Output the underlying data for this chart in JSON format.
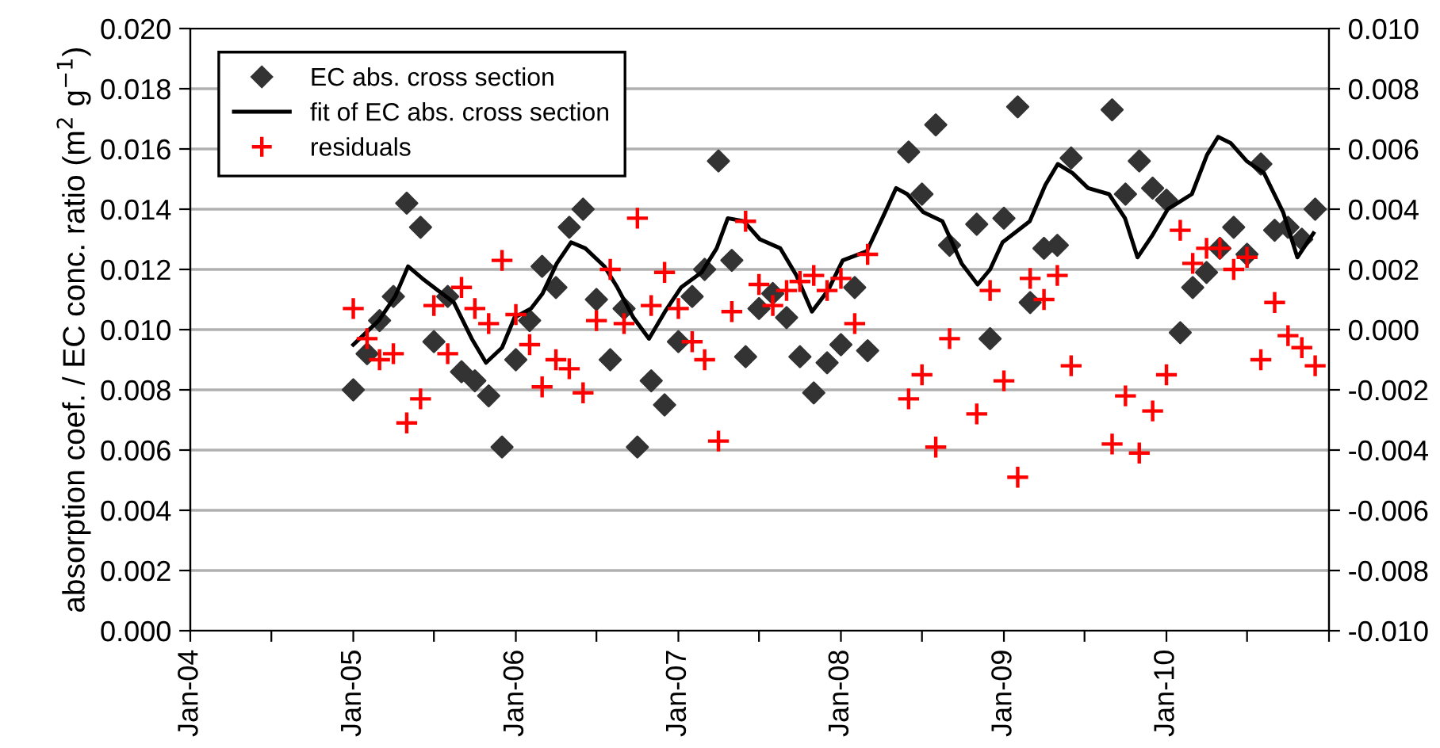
{
  "chart_data": {
    "type": "scatter",
    "ylabel": "absorption coef. / EC conc. ratio (m$^{2}$ g$^{−1}$)",
    "xlim": [
      "2004-01-01",
      "2011-01-01"
    ],
    "xticks": [
      {
        "value": "2004-01-01",
        "label": "Jan-04"
      },
      {
        "value": "2004-07-01",
        "label": null
      },
      {
        "value": "2005-01-01",
        "label": "Jan-05"
      },
      {
        "value": "2005-07-01",
        "label": null
      },
      {
        "value": "2006-01-01",
        "label": "Jan-06"
      },
      {
        "value": "2006-07-01",
        "label": null
      },
      {
        "value": "2007-01-01",
        "label": "Jan-07"
      },
      {
        "value": "2007-07-01",
        "label": null
      },
      {
        "value": "2008-01-01",
        "label": "Jan-08"
      },
      {
        "value": "2008-07-01",
        "label": null
      },
      {
        "value": "2009-01-01",
        "label": "Jan-09"
      },
      {
        "value": "2009-07-01",
        "label": null
      },
      {
        "value": "2010-01-01",
        "label": "Jan-10"
      },
      {
        "value": "2010-07-01",
        "label": null
      },
      {
        "value": "2011-01-01",
        "label": null
      }
    ],
    "ylim": [
      0,
      0.02
    ],
    "yticks": [
      {
        "value": 0,
        "label": "0.000"
      },
      {
        "value": 0.002,
        "label": "0.002"
      },
      {
        "value": 0.004,
        "label": "0.004"
      },
      {
        "value": 0.006,
        "label": "0.006"
      },
      {
        "value": 0.008,
        "label": "0.008"
      },
      {
        "value": 0.01,
        "label": "0.010"
      },
      {
        "value": 0.012,
        "label": "0.012"
      },
      {
        "value": 0.014,
        "label": "0.014"
      },
      {
        "value": 0.016,
        "label": "0.016"
      },
      {
        "value": 0.018,
        "label": "0.018"
      },
      {
        "value": 0.02,
        "label": "0.020"
      }
    ],
    "y2lim": [
      -0.01,
      0.01
    ],
    "y2ticks": [
      {
        "value": -0.01,
        "label": "-0.010"
      },
      {
        "value": -0.008,
        "label": "-0.008"
      },
      {
        "value": -0.006,
        "label": "-0.006"
      },
      {
        "value": -0.004,
        "label": "-0.004"
      },
      {
        "value": -0.002,
        "label": "-0.002"
      },
      {
        "value": 0,
        "label": "0.000"
      },
      {
        "value": 0.002,
        "label": "0.002"
      },
      {
        "value": 0.004,
        "label": "0.004"
      },
      {
        "value": 0.006,
        "label": "0.006"
      },
      {
        "value": 0.008,
        "label": "0.008"
      },
      {
        "value": 0.01,
        "label": "0.010"
      }
    ],
    "grid": "y",
    "legend": "top left",
    "series": [
      {
        "name": "EC abs. cross section",
        "marker": "diamond",
        "color": "#333333",
        "x": [
          "2005-01",
          "2005-02",
          "2005-03",
          "2005-04",
          "2005-05",
          "2005-06",
          "2005-07",
          "2005-08",
          "2005-09",
          "2005-10",
          "2005-11",
          "2005-12",
          "2006-01",
          "2006-02",
          "2006-03",
          "2006-04",
          "2006-05",
          "2006-06",
          "2006-07",
          "2006-08",
          "2006-09",
          "2006-10",
          "2006-11",
          "2006-12",
          "2007-01",
          "2007-02",
          "2007-03",
          "2007-04",
          "2007-05",
          "2007-06",
          "2007-07",
          "2007-08",
          "2007-09",
          "2007-10",
          "2007-11",
          "2007-12",
          "2008-01",
          "2008-02",
          "2008-03",
          "2008-06",
          "2008-07",
          "2008-08",
          "2008-09",
          "2008-11",
          "2008-12",
          "2009-01",
          "2009-02",
          "2009-03",
          "2009-04",
          "2009-05",
          "2009-06",
          "2009-09",
          "2009-10",
          "2009-11",
          "2009-12",
          "2010-01",
          "2010-02",
          "2010-03",
          "2010-04",
          "2010-05",
          "2010-06",
          "2010-07",
          "2010-08",
          "2010-09",
          "2010-10",
          "2010-11",
          "2010-12"
        ],
        "values": [
          0.008,
          0.0092,
          0.0103,
          0.0111,
          0.0142,
          0.0134,
          0.0096,
          0.0111,
          0.0086,
          0.0083,
          0.0078,
          0.0061,
          0.009,
          0.0103,
          0.0121,
          0.0114,
          0.0134,
          0.014,
          0.011,
          0.009,
          0.0107,
          0.0061,
          0.0083,
          0.0075,
          0.0096,
          0.0111,
          0.012,
          0.0156,
          0.0123,
          0.0091,
          0.0107,
          0.0112,
          0.0104,
          0.0091,
          0.0079,
          0.0089,
          0.0095,
          0.0114,
          0.0093,
          0.0159,
          0.0145,
          0.0168,
          0.0128,
          0.0135,
          0.0097,
          0.0137,
          0.0174,
          0.0109,
          0.0127,
          0.0128,
          0.0157,
          0.0173,
          0.0145,
          0.0156,
          0.0147,
          0.0143,
          0.0099,
          0.0114,
          0.0119,
          0.0127,
          0.0134,
          0.0125,
          0.0155,
          0.0133,
          0.0134,
          0.013,
          0.014
        ]
      },
      {
        "name": "fit of EC abs. cross section",
        "type": "line",
        "marker": "none",
        "line_style": "solid",
        "color": "#000000",
        "x": [
          "2005-01-01",
          "2005-02-27",
          "2005-04-05",
          "2005-05-04",
          "2005-06-05",
          "2005-07-10",
          "2005-08-15",
          "2005-09-24",
          "2005-10-26",
          "2005-12-01",
          "2005-12-29",
          "2006-02-04",
          "2006-03-02",
          "2006-04-03",
          "2006-05-05",
          "2006-06-06",
          "2006-07-19",
          "2006-08-17",
          "2006-09-22",
          "2006-10-27",
          "2006-12-02",
          "2007-01-07",
          "2007-02-22",
          "2007-03-28",
          "2007-04-22",
          "2007-05-28",
          "2007-07-03",
          "2007-08-18",
          "2007-09-23",
          "2007-10-28",
          "2007-12-03",
          "2008-01-05",
          "2008-02-28",
          "2008-04-03",
          "2008-05-04",
          "2008-05-29",
          "2008-07-04",
          "2008-08-16",
          "2008-09-28",
          "2008-11-03",
          "2008-12-01",
          "2008-12-29",
          "2009-02-28",
          "2009-04-04",
          "2009-05-02",
          "2009-06-04",
          "2009-07-09",
          "2009-08-25",
          "2009-09-30",
          "2009-10-28",
          "2009-11-29",
          "2010-01-04",
          "2010-02-27",
          "2010-04-02",
          "2010-04-27",
          "2010-05-25",
          "2010-06-30",
          "2010-08-08",
          "2010-09-20",
          "2010-10-22",
          "2010-11-27"
        ],
        "values": [
          0.0095,
          0.0103,
          0.0111,
          0.0121,
          0.0117,
          0.0113,
          0.0109,
          0.0097,
          0.0089,
          0.0094,
          0.0104,
          0.0107,
          0.0112,
          0.0122,
          0.0129,
          0.0127,
          0.0121,
          0.0114,
          0.0104,
          0.0097,
          0.0106,
          0.0114,
          0.0119,
          0.0127,
          0.0137,
          0.0136,
          0.013,
          0.0127,
          0.0118,
          0.0106,
          0.0113,
          0.0123,
          0.0126,
          0.0137,
          0.0147,
          0.0145,
          0.0139,
          0.0136,
          0.0122,
          0.0115,
          0.012,
          0.0129,
          0.0136,
          0.0148,
          0.0155,
          0.0152,
          0.0147,
          0.0145,
          0.0137,
          0.0124,
          0.0131,
          0.014,
          0.0145,
          0.0158,
          0.0164,
          0.0162,
          0.0156,
          0.0152,
          0.0139,
          0.0124,
          0.0132
        ]
      },
      {
        "name": "residuals",
        "marker": "cross",
        "color": "#ff0000",
        "axis": "y2",
        "x": [
          "2005-01",
          "2005-02",
          "2005-03",
          "2005-04",
          "2005-05",
          "2005-06",
          "2005-07",
          "2005-08",
          "2005-09",
          "2005-10",
          "2005-11",
          "2005-12",
          "2006-01",
          "2006-02",
          "2006-03",
          "2006-04",
          "2006-05",
          "2006-06",
          "2006-07",
          "2006-08",
          "2006-09",
          "2006-10",
          "2006-11",
          "2006-12",
          "2007-01",
          "2007-02",
          "2007-03",
          "2007-04",
          "2007-05",
          "2007-06",
          "2007-07",
          "2007-08",
          "2007-09",
          "2007-10",
          "2007-11",
          "2007-12",
          "2008-01",
          "2008-02",
          "2008-03",
          "2008-06",
          "2008-07",
          "2008-08",
          "2008-09",
          "2008-11",
          "2008-12",
          "2009-01",
          "2009-02",
          "2009-03",
          "2009-04",
          "2009-05",
          "2009-06",
          "2009-09",
          "2009-10",
          "2009-11",
          "2009-12",
          "2010-01",
          "2010-02",
          "2010-03",
          "2010-04",
          "2010-05",
          "2010-06",
          "2010-07",
          "2010-08",
          "2010-09",
          "2010-10",
          "2010-11",
          "2010-12"
        ],
        "values": [
          0.0007,
          -0.0003,
          -0.001,
          -0.0008,
          -0.0031,
          -0.0023,
          0.0008,
          -0.0008,
          0.0014,
          0.0007,
          0.0002,
          0.0023,
          0.0005,
          -0.0005,
          -0.0019,
          -0.001,
          -0.0013,
          -0.0021,
          0.0003,
          0.002,
          0.0002,
          0.0037,
          0.0008,
          0.0019,
          0.0007,
          -0.0004,
          -0.001,
          -0.0037,
          0.0006,
          0.0036,
          0.0015,
          0.0008,
          0.0013,
          0.0016,
          0.0018,
          0.0013,
          0.0017,
          0.0002,
          0.0025,
          -0.0023,
          -0.0015,
          -0.0039,
          -0.0003,
          -0.0028,
          0.0013,
          -0.0017,
          -0.0049,
          0.0017,
          0.001,
          0.0018,
          -0.0012,
          -0.0038,
          -0.0022,
          -0.0041,
          -0.0027,
          -0.0015,
          0.0033,
          0.0022,
          0.0027,
          0.0027,
          0.002,
          0.0024,
          -0.001,
          0.0009,
          -0.0002,
          -0.0006,
          -0.0012
        ]
      }
    ]
  }
}
